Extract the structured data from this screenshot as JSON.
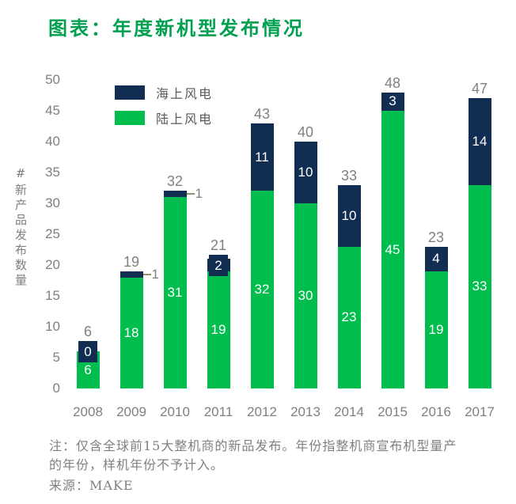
{
  "title": "图表：年度新机型发布情况",
  "colors": {
    "title_green": "#00A050",
    "bar_green": "#00BE4D",
    "bar_navy": "#112D52",
    "gray_text": "#808080",
    "legend_text": "#595959",
    "leader_line": "#8F8F74",
    "inner_label": "#FFFFFF",
    "background": "#FFFFFF"
  },
  "legend": [
    {
      "name": "offshore",
      "label": "海上风电",
      "color_key": "bar_navy"
    },
    {
      "name": "onshore",
      "label": "陆上风电",
      "color_key": "bar_green"
    }
  ],
  "chart_data": {
    "type": "bar",
    "stacked": true,
    "title": "图表：年度新机型发布情况",
    "categories": [
      "2008",
      "2009",
      "2010",
      "2011",
      "2012",
      "2013",
      "2014",
      "2015",
      "2016",
      "2017"
    ],
    "series": [
      {
        "name": "陆上风电",
        "color_key": "bar_green",
        "values": [
          6,
          18,
          31,
          19,
          32,
          30,
          23,
          45,
          19,
          33
        ]
      },
      {
        "name": "海上风电",
        "color_key": "bar_navy",
        "values": [
          0,
          1,
          1,
          2,
          11,
          10,
          10,
          3,
          4,
          14
        ]
      }
    ],
    "totals": [
      6,
      19,
      32,
      21,
      43,
      40,
      33,
      48,
      23,
      47
    ],
    "ylabel": "#新产品发布数量",
    "xlabel": "",
    "yticks": [
      0,
      5,
      10,
      15,
      20,
      25,
      30,
      35,
      40,
      45,
      50
    ],
    "ylim": [
      0,
      50
    ],
    "gridlines": false,
    "legend_position": "top-left-inside",
    "offshore_label_styles": [
      "box",
      "leader",
      "leader",
      "box",
      "inside",
      "inside",
      "inside",
      "inside",
      "inside",
      "inside"
    ]
  },
  "notes": {
    "line1": "注：仅含全球前15大整机商的新品发布。年份指整机商宣布机型量产",
    "line2": "的年份，样机年份不予计入。",
    "source": "来源：MAKE"
  }
}
